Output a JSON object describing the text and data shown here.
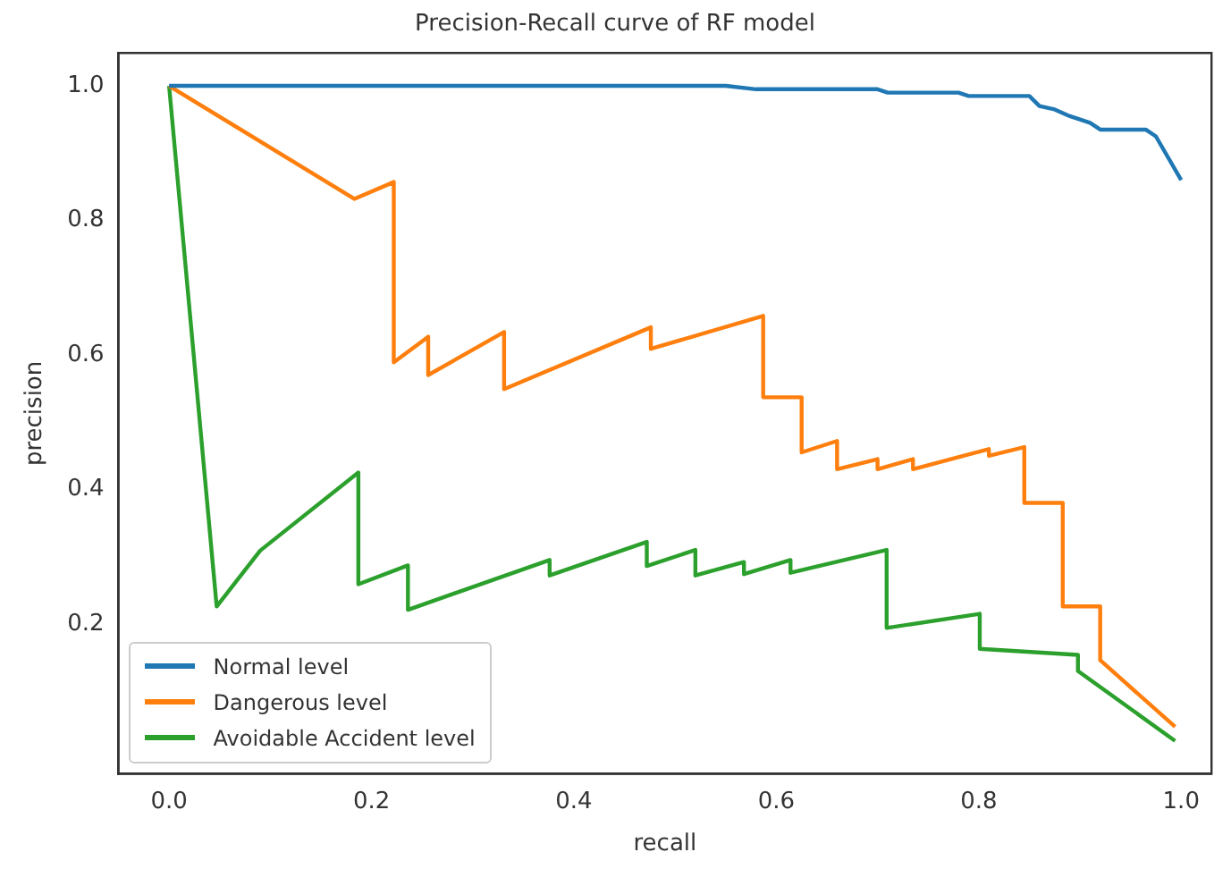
{
  "chart_data": {
    "type": "line",
    "title": "Precision-Recall curve of RF model",
    "xlabel": "recall",
    "ylabel": "precision",
    "series": [
      {
        "name": "Normal level",
        "color": "#1f77b4",
        "x": [
          0,
          0.55,
          0.58,
          0.7,
          0.71,
          0.78,
          0.79,
          0.85,
          0.86,
          0.875,
          0.89,
          0.91,
          0.92,
          0.965,
          0.975,
          1.0
        ],
        "values": [
          1,
          1,
          0.995,
          0.995,
          0.99,
          0.99,
          0.985,
          0.985,
          0.97,
          0.965,
          0.955,
          0.945,
          0.935,
          0.935,
          0.925,
          0.86
        ]
      },
      {
        "name": "Dangerous level",
        "color": "#ff7f0e",
        "x": [
          0,
          0.183,
          0.222,
          0.222,
          0.256,
          0.256,
          0.331,
          0.331,
          0.476,
          0.476,
          0.587,
          0.587,
          0.625,
          0.625,
          0.66,
          0.66,
          0.7,
          0.7,
          0.735,
          0.735,
          0.81,
          0.81,
          0.845,
          0.845,
          0.883,
          0.883,
          0.92,
          0.92,
          0.994
        ],
        "values": [
          1,
          0.832,
          0.857,
          0.589,
          0.627,
          0.57,
          0.634,
          0.549,
          0.641,
          0.609,
          0.658,
          0.537,
          0.537,
          0.455,
          0.472,
          0.43,
          0.445,
          0.43,
          0.445,
          0.43,
          0.46,
          0.45,
          0.463,
          0.38,
          0.38,
          0.226,
          0.226,
          0.146,
          0.047
        ]
      },
      {
        "name": "Avoidable Accident level",
        "color": "#2ca02c",
        "x": [
          0,
          0.047,
          0.09,
          0.187,
          0.187,
          0.236,
          0.236,
          0.376,
          0.376,
          0.472,
          0.472,
          0.52,
          0.52,
          0.568,
          0.568,
          0.614,
          0.614,
          0.709,
          0.709,
          0.801,
          0.801,
          0.898,
          0.898,
          0.994
        ],
        "values": [
          1,
          0.226,
          0.309,
          0.425,
          0.259,
          0.287,
          0.221,
          0.295,
          0.272,
          0.322,
          0.286,
          0.31,
          0.272,
          0.292,
          0.274,
          0.295,
          0.276,
          0.31,
          0.194,
          0.215,
          0.163,
          0.154,
          0.13,
          0.026
        ]
      }
    ],
    "xlim": [
      -0.05,
      1.03
    ],
    "ylim": [
      -0.023,
      1.049
    ],
    "xticks": [
      {
        "value": 0,
        "label": "0.0"
      },
      {
        "value": 0.2,
        "label": "0.2"
      },
      {
        "value": 0.4,
        "label": "0.4"
      },
      {
        "value": 0.6,
        "label": "0.6"
      },
      {
        "value": 0.8,
        "label": "0.8"
      },
      {
        "value": 1,
        "label": "1.0"
      }
    ],
    "yticks": [
      {
        "value": 0.2,
        "label": "0.2"
      },
      {
        "value": 0.4,
        "label": "0.4"
      },
      {
        "value": 0.6,
        "label": "0.6"
      },
      {
        "value": 0.8,
        "label": "0.8"
      },
      {
        "value": 1,
        "label": "1.0"
      }
    ],
    "grid": false,
    "legend": "bottom left",
    "marker": "none",
    "line_style": "solid"
  }
}
